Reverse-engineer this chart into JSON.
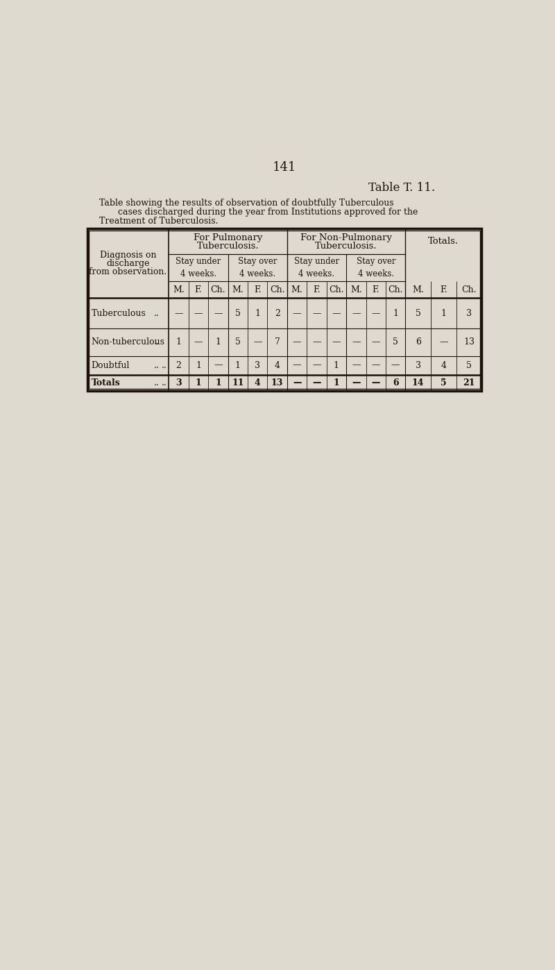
{
  "page_number": "141",
  "table_title": "Table T. 11.",
  "caption_line1": "Table showing the results of observation of doubtfully Tuberculous",
  "caption_line2": "cases discharged during the year from Institutions approved for the",
  "caption_line3": "Treatment of Tuberculosis.",
  "background_color": "#dedad0",
  "text_color": "#1a120a",
  "header_pulm": [
    "For Pulmonary",
    "Tuberculosis."
  ],
  "header_nonpulm": [
    "For Non-Pulmonary",
    "Tuberculosis."
  ],
  "header_totals": "Totals.",
  "sub_headers": [
    "Stay under\n4 weeks.",
    "Stay over\n4 weeks.",
    "Stay under\n4 weeks.",
    "Stay over\n4 weeks."
  ],
  "mfc": [
    "M.",
    "F.",
    "Ch."
  ],
  "label_header": [
    "Diagnosis on",
    "discharge",
    "from observation."
  ],
  "row_labels": [
    "Tuberculous",
    "Non-tuberculous",
    "Doubtful",
    "Totals"
  ],
  "row_dots": [
    "..",
    "..",
    "..",
    ".."
  ],
  "row_dots2": [
    "",
    "",
    "..",
    ".."
  ],
  "data": [
    [
      "—",
      "—",
      "—",
      "5",
      "1",
      "2",
      "—",
      "—",
      "—",
      "—",
      "—",
      "1",
      "5",
      "1",
      "3"
    ],
    [
      "1",
      "—",
      "1",
      "5",
      "—",
      "7",
      "—",
      "—",
      "—",
      "—",
      "—",
      "5",
      "6",
      "—",
      "13"
    ],
    [
      "2",
      "1",
      "—",
      "1",
      "3",
      "4",
      "—",
      "—",
      "1",
      "—",
      "—",
      "—",
      "3",
      "4",
      "5"
    ],
    [
      "3",
      "1",
      "1",
      "11",
      "4",
      "13",
      "—",
      "—",
      "1",
      "—",
      "—",
      "6",
      "14",
      "5",
      "21"
    ]
  ]
}
